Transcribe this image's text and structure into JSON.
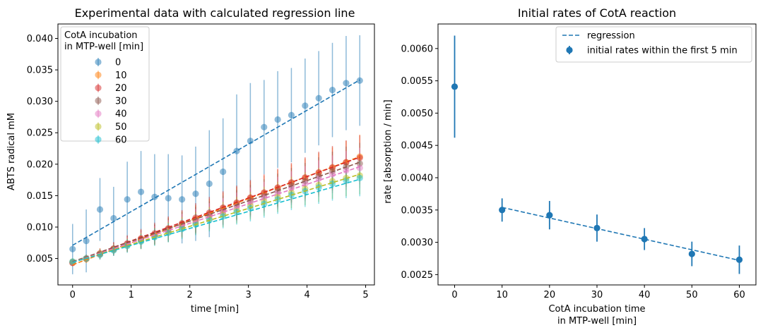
{
  "chart_data": [
    {
      "type": "scatter",
      "title": "Experimental data with calculated regression line",
      "xlabel": "time [min]",
      "ylabel": "ABTS radical mM",
      "xlim": [
        -0.25,
        5.15
      ],
      "ylim": [
        0.0008,
        0.0423
      ],
      "xticks": [
        "0",
        "1",
        "2",
        "3",
        "4",
        "5"
      ],
      "yticks": [
        "0.005",
        "0.010",
        "0.015",
        "0.020",
        "0.025",
        "0.030",
        "0.035",
        "0.040"
      ],
      "grid": false,
      "legend": {
        "title_lines": [
          "CotA incubation",
          "in MTP-well [min]"
        ],
        "position": "upper left"
      },
      "x": [
        0.0,
        0.233,
        0.467,
        0.7,
        0.933,
        1.167,
        1.4,
        1.633,
        1.867,
        2.1,
        2.333,
        2.567,
        2.8,
        3.033,
        3.267,
        3.5,
        3.733,
        3.967,
        4.2,
        4.433,
        4.667,
        4.9
      ],
      "series": [
        {
          "name": "0",
          "color": "#1f77b4",
          "values": [
            0.0065,
            0.0078,
            0.0128,
            0.0114,
            0.0144,
            0.0156,
            0.0148,
            0.0146,
            0.0144,
            0.0153,
            0.0169,
            0.0188,
            0.0221,
            0.0237,
            0.0259,
            0.0271,
            0.0278,
            0.0293,
            0.0305,
            0.0318,
            0.0329,
            0.0333
          ],
          "errors": [
            0.004,
            0.005,
            0.005,
            0.005,
            0.006,
            0.0065,
            0.0068,
            0.007,
            0.007,
            0.0075,
            0.0085,
            0.0085,
            0.009,
            0.0092,
            0.0075,
            0.0077,
            0.0075,
            0.0075,
            0.0075,
            0.0075,
            0.0075,
            0.0072
          ],
          "regression": [
            0.0071,
            0.0334
          ]
        },
        {
          "name": "10",
          "color": "#ff7f0e",
          "values": [
            0.0043,
            0.0049,
            0.0058,
            0.0065,
            0.0073,
            0.0081,
            0.0088,
            0.0097,
            0.0105,
            0.0113,
            0.0121,
            0.013,
            0.0138,
            0.0146,
            0.0154,
            0.0162,
            0.017,
            0.0178,
            0.0186,
            0.0194,
            0.0203,
            0.0212
          ],
          "errors": [
            0.0005,
            0.0006,
            0.0008,
            0.001,
            0.0012,
            0.0014,
            0.0016,
            0.0018,
            0.002,
            0.0022,
            0.0024,
            0.0025,
            0.0026,
            0.0027,
            0.0028,
            0.0029,
            0.003,
            0.0031,
            0.0032,
            0.0033,
            0.0034,
            0.0035
          ],
          "regression": [
            0.004,
            0.0212
          ]
        },
        {
          "name": "20",
          "color": "#d62728",
          "values": [
            0.0043,
            0.005,
            0.0058,
            0.0066,
            0.0074,
            0.0082,
            0.009,
            0.0098,
            0.0106,
            0.0115,
            0.0123,
            0.0131,
            0.0139,
            0.0147,
            0.0155,
            0.0163,
            0.0171,
            0.0179,
            0.0187,
            0.0195,
            0.0203,
            0.021
          ],
          "errors": [
            0.0005,
            0.0006,
            0.0008,
            0.001,
            0.0013,
            0.0015,
            0.0017,
            0.0019,
            0.0021,
            0.0023,
            0.0025,
            0.0026,
            0.0027,
            0.0028,
            0.0029,
            0.003,
            0.0031,
            0.0032,
            0.0033,
            0.0034,
            0.0035,
            0.0036
          ],
          "regression": [
            0.0044,
            0.0211
          ]
        },
        {
          "name": "30",
          "color": "#8c564b",
          "values": [
            0.0044,
            0.005,
            0.0057,
            0.0065,
            0.0073,
            0.008,
            0.0088,
            0.0096,
            0.0104,
            0.0111,
            0.0119,
            0.0127,
            0.0135,
            0.0142,
            0.015,
            0.0158,
            0.0166,
            0.0173,
            0.0181,
            0.0189,
            0.0196,
            0.0201
          ],
          "errors": [
            0.0005,
            0.0006,
            0.0008,
            0.001,
            0.0012,
            0.0014,
            0.0016,
            0.0018,
            0.002,
            0.0021,
            0.0022,
            0.0023,
            0.0024,
            0.0025,
            0.0026,
            0.0027,
            0.0028,
            0.0029,
            0.003,
            0.0031,
            0.0032,
            0.0033
          ],
          "regression": [
            0.0045,
            0.0203
          ]
        },
        {
          "name": "40",
          "color": "#e377c2",
          "values": [
            0.0044,
            0.005,
            0.0057,
            0.0064,
            0.0072,
            0.0079,
            0.0087,
            0.0094,
            0.0102,
            0.0109,
            0.0117,
            0.0124,
            0.0132,
            0.0139,
            0.0147,
            0.0154,
            0.0162,
            0.0169,
            0.0177,
            0.0184,
            0.019,
            0.0194
          ],
          "errors": [
            0.0005,
            0.0006,
            0.0008,
            0.001,
            0.0012,
            0.0014,
            0.0015,
            0.0017,
            0.0019,
            0.002,
            0.0021,
            0.0022,
            0.0023,
            0.0024,
            0.0025,
            0.0026,
            0.0027,
            0.0028,
            0.0029,
            0.003,
            0.0031,
            0.0032
          ],
          "regression": [
            0.0044,
            0.0196
          ]
        },
        {
          "name": "50",
          "color": "#bcbd22",
          "values": [
            0.0045,
            0.005,
            0.0057,
            0.0064,
            0.0071,
            0.0078,
            0.0085,
            0.0092,
            0.0099,
            0.0106,
            0.0113,
            0.012,
            0.0127,
            0.0134,
            0.0141,
            0.0148,
            0.0155,
            0.0161,
            0.0167,
            0.0173,
            0.0178,
            0.0182
          ],
          "errors": [
            0.0005,
            0.0006,
            0.0008,
            0.0009,
            0.0011,
            0.0013,
            0.0014,
            0.0016,
            0.0017,
            0.0018,
            0.0019,
            0.002,
            0.0021,
            0.0022,
            0.0023,
            0.0024,
            0.0025,
            0.0026,
            0.0027,
            0.0028,
            0.0029,
            0.003
          ],
          "regression": [
            0.0044,
            0.0184
          ]
        },
        {
          "name": "60",
          "color": "#17becf",
          "values": [
            0.0045,
            0.005,
            0.0056,
            0.0063,
            0.007,
            0.0077,
            0.0084,
            0.0091,
            0.0097,
            0.0104,
            0.0111,
            0.0117,
            0.0124,
            0.013,
            0.0137,
            0.0144,
            0.0151,
            0.0157,
            0.0163,
            0.0169,
            0.0174,
            0.0178
          ],
          "errors": [
            0.0005,
            0.0006,
            0.0008,
            0.0009,
            0.0011,
            0.0012,
            0.0014,
            0.0015,
            0.0016,
            0.0017,
            0.0018,
            0.0019,
            0.002,
            0.0021,
            0.0022,
            0.0023,
            0.0024,
            0.0025,
            0.0026,
            0.0027,
            0.0028,
            0.0029
          ],
          "regression": [
            0.0044,
            0.0176
          ]
        }
      ]
    },
    {
      "type": "scatter",
      "title": "Initial rates of CotA reaction",
      "xlabel_lines": [
        "CotA incubation time",
        "in MTP-well [min]"
      ],
      "ylabel": "rate [absorption / min]",
      "xlim": [
        -3.5,
        63.5
      ],
      "ylim": [
        0.00234,
        0.00638
      ],
      "xticks": [
        "0",
        "10",
        "20",
        "30",
        "40",
        "50",
        "60"
      ],
      "yticks": [
        "0.0025",
        "0.0030",
        "0.0035",
        "0.0040",
        "0.0045",
        "0.0050",
        "0.0055",
        "0.0060"
      ],
      "grid": false,
      "legend": {
        "position": "upper right"
      },
      "series": [
        {
          "name": "initial rates within the first 5 min",
          "color": "#1f77b4",
          "x": [
            0,
            10,
            20,
            30,
            40,
            50,
            60
          ],
          "values": [
            0.00541,
            0.0035,
            0.00342,
            0.00322,
            0.00305,
            0.00282,
            0.00273
          ],
          "errors": [
            0.00079,
            0.00018,
            0.00022,
            0.00021,
            0.00017,
            0.00019,
            0.00022
          ]
        },
        {
          "name": "regression",
          "color": "#1f77b4",
          "style": "dashed",
          "x": [
            10,
            60
          ],
          "values": [
            0.00354,
            0.00272
          ]
        }
      ]
    }
  ]
}
